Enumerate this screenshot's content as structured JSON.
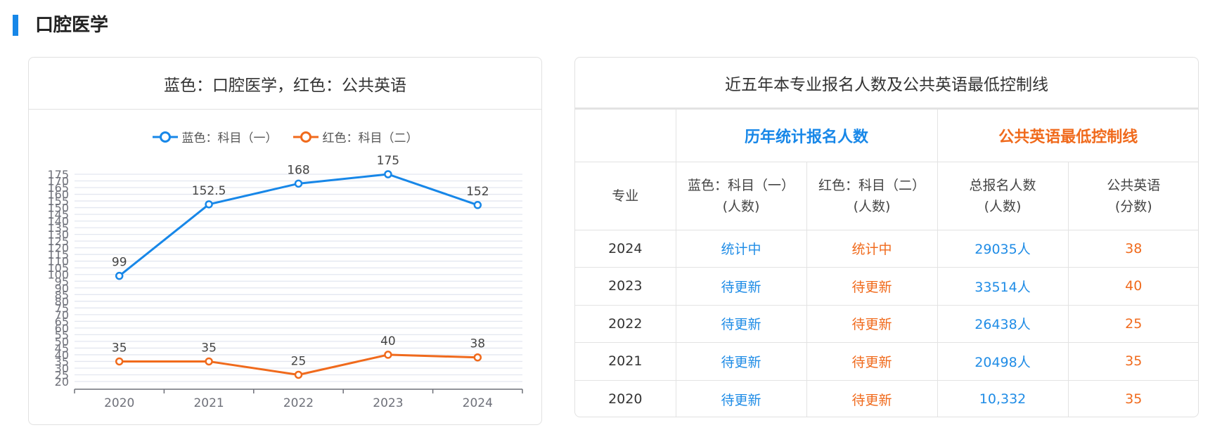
{
  "section": {
    "title": "口腔医学"
  },
  "chart_card": {
    "title": "蓝色：口腔医学，红色：公共英语",
    "legend": [
      {
        "label": "蓝色：科目（一）",
        "color": "#1787e8"
      },
      {
        "label": "红色：科目（二）",
        "color": "#f06a1c"
      }
    ]
  },
  "chart_data": {
    "type": "line",
    "title": "蓝色：口腔医学，红色：公共英语",
    "categories": [
      "2020",
      "2021",
      "2022",
      "2023",
      "2024"
    ],
    "series": [
      {
        "name": "蓝色：科目（一）",
        "color": "#1787e8",
        "values": [
          99,
          152.5,
          168,
          175,
          152
        ]
      },
      {
        "name": "红色：科目（二）",
        "color": "#f06a1c",
        "values": [
          35,
          35,
          25,
          40,
          38
        ]
      }
    ],
    "xlabel": "",
    "ylabel": "",
    "ylim": [
      20,
      175
    ],
    "yticks": [
      20,
      25,
      30,
      35,
      40,
      45,
      50,
      55,
      60,
      65,
      70,
      75,
      80,
      85,
      90,
      95,
      100,
      105,
      110,
      115,
      120,
      125,
      130,
      135,
      140,
      145,
      150,
      155,
      160,
      165,
      170,
      175
    ],
    "grid": true,
    "legend_position": "top"
  },
  "table_card": {
    "title": "近五年本专业报名人数及公共英语最低控制线",
    "group_headers": {
      "registrations": "历年统计报名人数",
      "english_line": "公共英语最低控制线"
    },
    "columns": [
      {
        "line1": "专业",
        "line2": ""
      },
      {
        "line1": "蓝色：科目（一）",
        "line2": "(人数)"
      },
      {
        "line1": "红色：科目（二）",
        "line2": "(人数)"
      },
      {
        "line1": "总报名人数",
        "line2": "(人数)"
      },
      {
        "line1": "公共英语",
        "line2": "(分数)"
      }
    ],
    "rows": [
      {
        "year": "2024",
        "subject1": "统计中",
        "subject2": "统计中",
        "total": "29035人",
        "english": "38"
      },
      {
        "year": "2023",
        "subject1": "待更新",
        "subject2": "待更新",
        "total": "33514人",
        "english": "40"
      },
      {
        "year": "2022",
        "subject1": "待更新",
        "subject2": "待更新",
        "total": "26438人",
        "english": "25"
      },
      {
        "year": "2021",
        "subject1": "待更新",
        "subject2": "待更新",
        "total": "20498人",
        "english": "35"
      },
      {
        "year": "2020",
        "subject1": "待更新",
        "subject2": "待更新",
        "total": "10,332",
        "english": "35"
      }
    ]
  },
  "colors": {
    "accent_blue": "#1787e8",
    "accent_orange": "#f06a1c",
    "border": "#e1e1e1",
    "grid": "#e3e7f0",
    "axis": "#6e7079"
  }
}
